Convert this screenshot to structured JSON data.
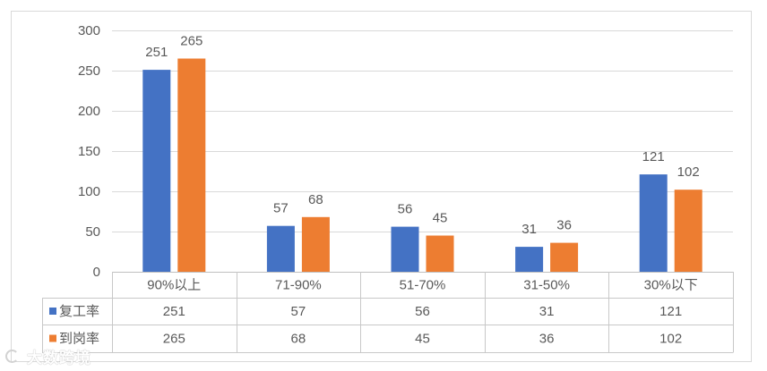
{
  "chart_data": {
    "type": "bar",
    "categories": [
      "90%以上",
      "71-90%",
      "51-70%",
      "31-50%",
      "30%以下"
    ],
    "series": [
      {
        "name": "复工率",
        "values": [
          251,
          57,
          56,
          31,
          121
        ],
        "color": "#4472C4"
      },
      {
        "name": "到岗率",
        "values": [
          265,
          68,
          45,
          36,
          102
        ],
        "color": "#ED7D31"
      }
    ],
    "ylim": [
      0,
      300
    ],
    "yticks": [
      0,
      50,
      100,
      150,
      200,
      250,
      300
    ],
    "grid": true,
    "data_labels": true,
    "data_table": true,
    "legend": "data table rows"
  },
  "watermark": "大数跨境"
}
